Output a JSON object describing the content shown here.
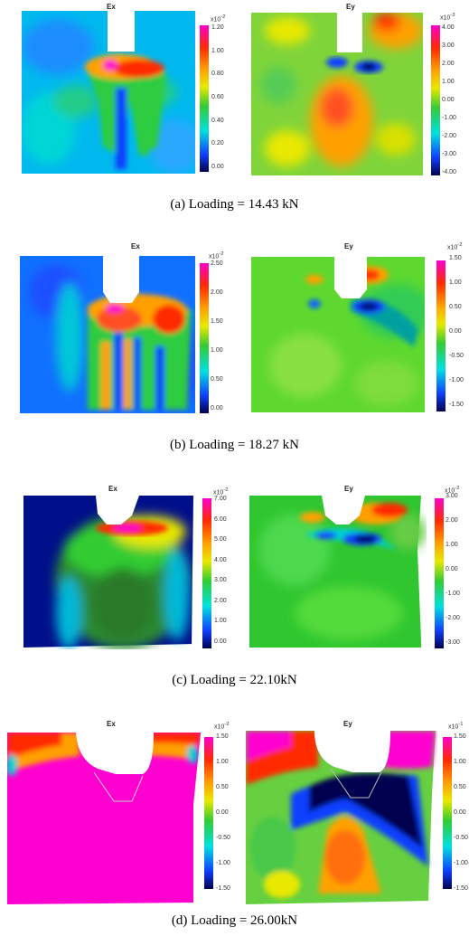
{
  "rows": [
    {
      "caption": "(a) Loading = 14.43 kN",
      "ex": {
        "title": "Ex",
        "exponent": "x10",
        "exp_sup": "-2",
        "ticks": [
          "1.20",
          "1.00",
          "0.80",
          "0.60",
          "0.40",
          "0.20",
          "0.00"
        ]
      },
      "ey": {
        "title": "Ey",
        "exponent": "x10",
        "exp_sup": "-3",
        "ticks": [
          "4.00",
          "3.00",
          "2.00",
          "1.00",
          "0.00",
          "-1.00",
          "-2.00",
          "-3.00",
          "-4.00"
        ]
      }
    },
    {
      "caption": "(b)    Loading = 18.27 kN",
      "ex": {
        "title": "Ex",
        "exponent": "x10",
        "exp_sup": "-2",
        "ticks": [
          "2.50",
          "2.00",
          "1.50",
          "1.00",
          "0.50",
          "0.00"
        ]
      },
      "ey": {
        "title": "Ey",
        "exponent": "x10",
        "exp_sup": "-2",
        "ticks": [
          "1.50",
          "1.00",
          "0.50",
          "0.00",
          "-0.50",
          "-1.00",
          "-1.50"
        ]
      }
    },
    {
      "caption": "(c) Loading = 22.10kN",
      "ex": {
        "title": "Ex",
        "exponent": "x10",
        "exp_sup": "-2",
        "ticks": [
          "7.00",
          "6.00",
          "5.00",
          "4.00",
          "3.00",
          "2.00",
          "1.00",
          "0.00"
        ]
      },
      "ey": {
        "title": "Ey",
        "exponent": "x10",
        "exp_sup": "-2",
        "ticks": [
          "3.00",
          "2.00",
          "1.00",
          "0.00",
          "-1.00",
          "-2.00",
          "-3.00"
        ]
      }
    },
    {
      "caption": "(d)       Loading = 26.00kN",
      "ex": {
        "title": "Ex",
        "exponent": "x10",
        "exp_sup": "-2",
        "ticks": [
          "1.50",
          "1.00",
          "0.50",
          "0.00",
          "-0.50",
          "-1.00",
          "-1.50"
        ]
      },
      "ey": {
        "title": "Ey",
        "exponent": "x10",
        "exp_sup": "-1",
        "ticks": [
          "1.50",
          "1.00",
          "0.50",
          "0.00",
          "-0.50",
          "-1.00",
          "-1.50"
        ]
      }
    }
  ],
  "colors": {
    "magenta": "#ff00d0",
    "red": "#ff2a00",
    "orange": "#ffa000",
    "yellow": "#e8e800",
    "green": "#33cc33",
    "cyan": "#00e0e0",
    "blue": "#1040ff",
    "navy": "#000050"
  }
}
